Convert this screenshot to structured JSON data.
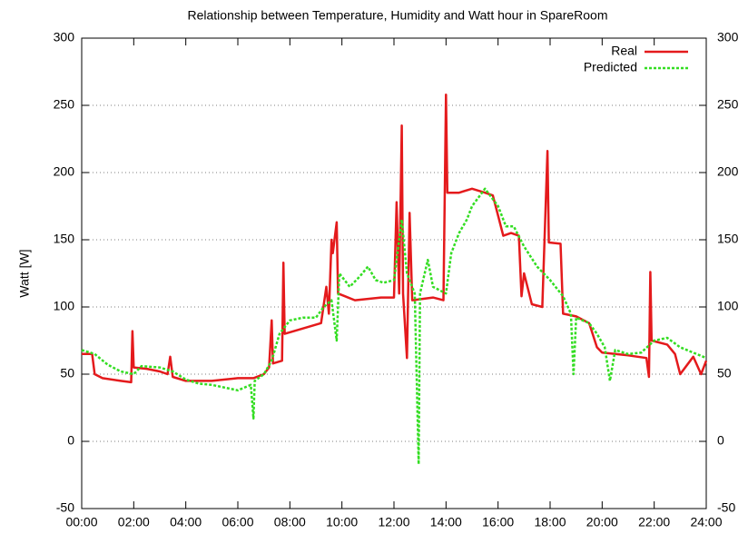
{
  "chart_data": {
    "type": "line",
    "title": "Relationship between Temperature, Humidity and Watt hour in SpareRoom",
    "y_label": "Watt [W]",
    "xlim": [
      0,
      24
    ],
    "xticks": [
      {
        "value": 0,
        "label": "00:00"
      },
      {
        "value": 2,
        "label": "02:00"
      },
      {
        "value": 4,
        "label": "04:00"
      },
      {
        "value": 6,
        "label": "06:00"
      },
      {
        "value": 8,
        "label": "08:00"
      },
      {
        "value": 10,
        "label": "10:00"
      },
      {
        "value": 12,
        "label": "12:00"
      },
      {
        "value": 14,
        "label": "14:00"
      },
      {
        "value": 16,
        "label": "16:00"
      },
      {
        "value": 18,
        "label": "18:00"
      },
      {
        "value": 20,
        "label": "20:00"
      },
      {
        "value": 22,
        "label": "22:00"
      },
      {
        "value": 24,
        "label": "24:00"
      }
    ],
    "ylim": [
      -50,
      300
    ],
    "yticks": [
      -50,
      0,
      50,
      100,
      150,
      200,
      250,
      300
    ],
    "y2lim": [
      -50,
      300
    ],
    "y2ticks": [
      -50,
      0,
      50,
      100,
      150,
      200,
      250,
      300
    ],
    "grid": true,
    "legend": "top-right",
    "series": [
      {
        "name": "Real",
        "color": "#e41a1c",
        "dashed": false,
        "x": [
          0,
          0.4,
          0.5,
          0.8,
          1.5,
          1.9,
          1.95,
          2.0,
          2.5,
          3.0,
          3.3,
          3.4,
          3.5,
          4.0,
          5.0,
          5.5,
          6.0,
          6.6,
          7.0,
          7.2,
          7.3,
          7.35,
          7.7,
          7.75,
          7.8,
          8.5,
          9.2,
          9.4,
          9.5,
          9.6,
          9.65,
          9.8,
          9.85,
          10.5,
          11.5,
          12.0,
          12.1,
          12.2,
          12.3,
          12.35,
          12.5,
          12.6,
          12.7,
          13.5,
          13.9,
          14.0,
          14.05,
          14.5,
          15.0,
          15.5,
          15.8,
          16.0,
          16.2,
          16.5,
          16.8,
          16.9,
          17.0,
          17.3,
          17.7,
          17.9,
          17.95,
          18.4,
          18.5,
          19.0,
          19.5,
          19.8,
          20.0,
          21.0,
          21.7,
          21.8,
          21.85,
          21.9,
          22.5,
          22.8,
          23.0,
          23.5,
          23.8,
          24
        ],
        "values": [
          65,
          65,
          50,
          47,
          45,
          44,
          82,
          55,
          54,
          52,
          50,
          63,
          48,
          45,
          45,
          46,
          47,
          47,
          50,
          55,
          90,
          58,
          60,
          133,
          80,
          84,
          88,
          115,
          95,
          150,
          140,
          163,
          110,
          105,
          107,
          107,
          178,
          110,
          235,
          110,
          62,
          170,
          105,
          107,
          105,
          258,
          185,
          185,
          188,
          185,
          183,
          168,
          153,
          155,
          153,
          108,
          125,
          102,
          100,
          216,
          148,
          147,
          95,
          93,
          88,
          70,
          66,
          64,
          62,
          48,
          126,
          75,
          72,
          65,
          50,
          63,
          50,
          60
        ]
      },
      {
        "name": "Predicted",
        "color": "#33dd22",
        "dashed": true,
        "x": [
          0,
          0.5,
          1.0,
          1.5,
          2.0,
          2.3,
          3.0,
          3.5,
          4.0,
          4.5,
          5.0,
          5.5,
          6.0,
          6.5,
          6.6,
          6.65,
          7.0,
          7.3,
          7.6,
          8.0,
          8.5,
          9.0,
          9.3,
          9.6,
          9.8,
          9.9,
          10.3,
          10.7,
          11.0,
          11.3,
          11.6,
          12.0,
          12.3,
          12.5,
          12.8,
          12.95,
          13.0,
          13.3,
          13.5,
          14.0,
          14.2,
          14.5,
          14.8,
          15.0,
          15.5,
          16.0,
          16.3,
          16.6,
          17.0,
          17.5,
          18.0,
          18.5,
          18.8,
          18.9,
          19.0,
          19.5,
          19.8,
          20.1,
          20.3,
          20.5,
          21.0,
          21.5,
          22.0,
          22.5,
          23.0,
          23.5,
          24
        ],
        "values": [
          68,
          65,
          57,
          52,
          50,
          56,
          55,
          52,
          46,
          43,
          42,
          40,
          38,
          42,
          17,
          45,
          50,
          60,
          80,
          90,
          92,
          92,
          100,
          105,
          75,
          125,
          115,
          123,
          130,
          120,
          118,
          120,
          165,
          125,
          110,
          -17,
          110,
          135,
          115,
          110,
          140,
          155,
          165,
          175,
          188,
          175,
          160,
          160,
          145,
          130,
          120,
          108,
          95,
          50,
          92,
          88,
          80,
          70,
          45,
          68,
          65,
          66,
          75,
          77,
          70,
          66,
          62
        ]
      }
    ]
  }
}
